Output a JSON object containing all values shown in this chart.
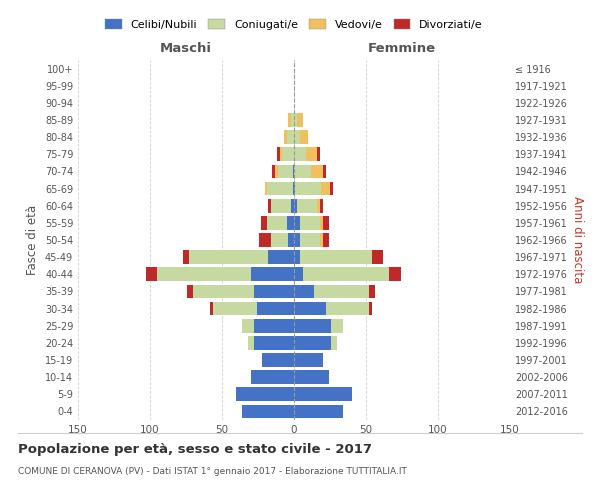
{
  "age_groups": [
    "0-4",
    "5-9",
    "10-14",
    "15-19",
    "20-24",
    "25-29",
    "30-34",
    "35-39",
    "40-44",
    "45-49",
    "50-54",
    "55-59",
    "60-64",
    "65-69",
    "70-74",
    "75-79",
    "80-84",
    "85-89",
    "90-94",
    "95-99",
    "100+"
  ],
  "birth_years": [
    "2012-2016",
    "2007-2011",
    "2002-2006",
    "1997-2001",
    "1992-1996",
    "1987-1991",
    "1982-1986",
    "1977-1981",
    "1972-1976",
    "1967-1971",
    "1962-1966",
    "1957-1961",
    "1952-1956",
    "1947-1951",
    "1942-1946",
    "1937-1941",
    "1932-1936",
    "1927-1931",
    "1922-1926",
    "1917-1921",
    "≤ 1916"
  ],
  "male": {
    "celibi": [
      36,
      40,
      30,
      22,
      28,
      28,
      26,
      28,
      30,
      18,
      4,
      5,
      2,
      1,
      1,
      0,
      0,
      0,
      0,
      0,
      0
    ],
    "coniugati": [
      0,
      0,
      0,
      0,
      4,
      8,
      30,
      42,
      65,
      55,
      12,
      14,
      14,
      18,
      10,
      8,
      5,
      2,
      0,
      0,
      0
    ],
    "vedovi": [
      0,
      0,
      0,
      0,
      0,
      0,
      0,
      0,
      0,
      0,
      0,
      0,
      0,
      1,
      2,
      2,
      2,
      2,
      0,
      0,
      0
    ],
    "divorziati": [
      0,
      0,
      0,
      0,
      0,
      0,
      2,
      4,
      8,
      4,
      8,
      4,
      2,
      0,
      2,
      2,
      0,
      0,
      0,
      0,
      0
    ]
  },
  "female": {
    "nubili": [
      34,
      40,
      24,
      20,
      26,
      26,
      22,
      14,
      6,
      4,
      4,
      4,
      2,
      1,
      0,
      0,
      0,
      0,
      0,
      0,
      0
    ],
    "coniugate": [
      0,
      0,
      0,
      0,
      4,
      8,
      30,
      38,
      60,
      50,
      14,
      14,
      14,
      18,
      12,
      8,
      4,
      2,
      0,
      0,
      0
    ],
    "vedove": [
      0,
      0,
      0,
      0,
      0,
      0,
      0,
      0,
      0,
      0,
      2,
      2,
      2,
      6,
      8,
      8,
      6,
      4,
      0,
      0,
      0
    ],
    "divorziate": [
      0,
      0,
      0,
      0,
      0,
      0,
      2,
      4,
      8,
      8,
      4,
      4,
      2,
      2,
      2,
      2,
      0,
      0,
      0,
      0,
      0
    ]
  },
  "colors": {
    "celibi": "#4472c4",
    "coniugati": "#c5d9a0",
    "vedovi": "#f0c060",
    "divorziati": "#c0292a"
  },
  "legend_labels": [
    "Celibi/Nubili",
    "Coniugati/e",
    "Vedovi/e",
    "Divorziati/e"
  ],
  "title": "Popolazione per età, sesso e stato civile - 2017",
  "subtitle": "COMUNE DI CERANOVA (PV) - Dati ISTAT 1° gennaio 2017 - Elaborazione TUTTITALIA.IT",
  "xlabel_left": "Maschi",
  "xlabel_right": "Femmine",
  "ylabel_left": "Fasce di età",
  "ylabel_right": "Anni di nascita",
  "xlim": 150,
  "background_color": "#ffffff",
  "grid_color": "#cccccc"
}
